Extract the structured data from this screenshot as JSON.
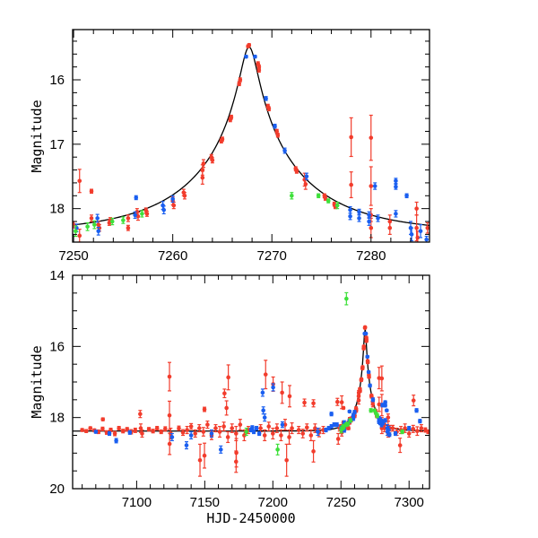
{
  "chart_data": [
    {
      "type": "scatter",
      "panel": "top",
      "title": "",
      "xlabel": "",
      "ylabel": "Magnitude",
      "xlim": [
        7249.9,
        7285.9
      ],
      "ylim": [
        18.52,
        15.22
      ],
      "y_inverted": true,
      "xticks": [
        7250,
        7260,
        7270,
        7280
      ],
      "xtick_labels": [
        "7250",
        "7260",
        "7270",
        "7280"
      ],
      "xminor_step": 2,
      "yticks": [
        16,
        17,
        18
      ],
      "ytick_labels": [
        "16",
        "17",
        "18"
      ],
      "yminor_step": 0.2,
      "grid": false,
      "legend": "none"
    },
    {
      "type": "scatter",
      "panel": "bottom",
      "title": "",
      "xlabel": "HJD-2450000",
      "ylabel": "Magnitude",
      "xlim": [
        7053,
        7315
      ],
      "ylim": [
        20,
        14
      ],
      "y_inverted": true,
      "xticks": [
        7100,
        7150,
        7200,
        7250,
        7300
      ],
      "xtick_labels": [
        "7100",
        "7150",
        "7200",
        "7250",
        "7300"
      ],
      "xminor_step": 10,
      "yticks": [
        14,
        16,
        18,
        20
      ],
      "ytick_labels": [
        "14",
        "16",
        "18",
        "20"
      ],
      "yminor_step": 0.5,
      "grid": false,
      "legend": "none"
    }
  ],
  "model": {
    "t0": 7267.7,
    "u0": 0.07,
    "tE": 11.5,
    "baseline_mag": 18.38,
    "color": "#000000"
  },
  "series": [
    {
      "color": "#f23c2c",
      "points": [
        [
          7250.0,
          18.25,
          0.05
        ],
        [
          7250.6,
          17.57,
          0.18
        ],
        [
          7250.6,
          18.42,
          0.1
        ],
        [
          7251.8,
          17.73,
          0.03
        ],
        [
          7251.8,
          18.15,
          0.05
        ],
        [
          7252.5,
          18.25,
          0.05
        ],
        [
          7252.6,
          18.3,
          0.05
        ],
        [
          7253.6,
          18.22,
          0.04
        ],
        [
          7253.7,
          18.18,
          0.04
        ],
        [
          7255.5,
          18.15,
          0.05
        ],
        [
          7255.5,
          18.3,
          0.04
        ],
        [
          7256.4,
          18.05,
          0.05
        ],
        [
          7256.5,
          18.12,
          0.06
        ],
        [
          7257.3,
          18.03,
          0.04
        ],
        [
          7257.4,
          18.08,
          0.04
        ],
        [
          7260.0,
          17.88,
          0.06
        ],
        [
          7260.1,
          17.95,
          0.05
        ],
        [
          7261.1,
          17.75,
          0.05
        ],
        [
          7261.2,
          17.8,
          0.05
        ],
        [
          7263.0,
          17.4,
          0.08
        ],
        [
          7263.0,
          17.52,
          0.1
        ],
        [
          7263.1,
          17.3,
          0.06
        ],
        [
          7263.9,
          17.2,
          0.04
        ],
        [
          7264.0,
          17.25,
          0.04
        ],
        [
          7264.9,
          16.95,
          0.03
        ],
        [
          7265.0,
          16.92,
          0.03
        ],
        [
          7265.8,
          16.62,
          0.03
        ],
        [
          7265.9,
          16.58,
          0.03
        ],
        [
          7266.7,
          16.06,
          0.03
        ],
        [
          7266.8,
          16.0,
          0.03
        ],
        [
          7267.6,
          15.48,
          0.02
        ],
        [
          7267.7,
          15.46,
          0.02
        ],
        [
          7268.6,
          15.75,
          0.03
        ],
        [
          7268.7,
          15.85,
          0.03
        ],
        [
          7268.7,
          15.8,
          0.03
        ],
        [
          7269.6,
          16.41,
          0.03
        ],
        [
          7269.7,
          16.45,
          0.03
        ],
        [
          7270.5,
          16.8,
          0.03
        ],
        [
          7270.6,
          16.86,
          0.03
        ],
        [
          7272.4,
          17.38,
          0.03
        ],
        [
          7272.5,
          17.42,
          0.03
        ],
        [
          7273.3,
          17.55,
          0.1
        ],
        [
          7273.4,
          17.62,
          0.08
        ],
        [
          7275.3,
          17.8,
          0.03
        ],
        [
          7275.4,
          17.84,
          0.03
        ],
        [
          7276.3,
          17.93,
          0.03
        ],
        [
          7276.4,
          17.97,
          0.03
        ],
        [
          7280.0,
          16.9,
          0.35
        ],
        [
          7280.0,
          17.65,
          0.3
        ],
        [
          7280.0,
          18.1,
          0.1
        ],
        [
          7280.0,
          18.3,
          0.15
        ],
        [
          7281.9,
          18.2,
          0.1
        ],
        [
          7281.9,
          18.3,
          0.1
        ],
        [
          7284.6,
          18.0,
          0.1
        ],
        [
          7284.6,
          18.3,
          0.2
        ],
        [
          7284.7,
          18.45,
          0.1
        ],
        [
          7285.7,
          18.3,
          0.08
        ],
        [
          7060,
          18.35,
          0.04
        ],
        [
          7063,
          18.38,
          0.04
        ],
        [
          7066,
          18.3,
          0.04
        ],
        [
          7069,
          18.36,
          0.04
        ],
        [
          7072,
          18.4,
          0.05
        ],
        [
          7075.2,
          18.05,
          0.04
        ],
        [
          7075,
          18.32,
          0.05
        ],
        [
          7078,
          18.42,
          0.05
        ],
        [
          7081,
          18.35,
          0.05
        ],
        [
          7084,
          18.45,
          0.06
        ],
        [
          7087,
          18.3,
          0.05
        ],
        [
          7090,
          18.38,
          0.05
        ],
        [
          7093,
          18.33,
          0.05
        ],
        [
          7096,
          18.4,
          0.06
        ],
        [
          7099,
          18.36,
          0.06
        ],
        [
          7102.6,
          17.9,
          0.1
        ],
        [
          7103,
          18.3,
          0.12
        ],
        [
          7104,
          18.45,
          0.1
        ],
        [
          7109,
          18.33,
          0.05
        ],
        [
          7112,
          18.38,
          0.05
        ],
        [
          7115,
          18.3,
          0.05
        ],
        [
          7118,
          18.4,
          0.05
        ],
        [
          7121,
          18.32,
          0.06
        ],
        [
          7124.1,
          16.85,
          0.4
        ],
        [
          7124.1,
          17.94,
          0.4
        ],
        [
          7124.2,
          18.74,
          0.3
        ],
        [
          7125,
          18.45,
          0.15
        ],
        [
          7131,
          18.3,
          0.06
        ],
        [
          7134,
          18.42,
          0.08
        ],
        [
          7137,
          18.35,
          0.1
        ],
        [
          7140,
          18.25,
          0.08
        ],
        [
          7143,
          18.45,
          0.1
        ],
        [
          7146,
          18.3,
          0.1
        ],
        [
          7146.5,
          19.2,
          0.45
        ],
        [
          7149,
          18.4,
          0.12
        ],
        [
          7149.8,
          17.77,
          0.06
        ],
        [
          7149.8,
          19.07,
          0.35
        ],
        [
          7152,
          18.2,
          0.1
        ],
        [
          7155,
          18.5,
          0.12
        ],
        [
          7158,
          18.3,
          0.1
        ],
        [
          7161,
          18.4,
          0.15
        ],
        [
          7164,
          18.25,
          0.12
        ],
        [
          7164.5,
          17.32,
          0.12
        ],
        [
          7166,
          17.73,
          0.2
        ],
        [
          7167,
          18.55,
          0.15
        ],
        [
          7167.3,
          16.87,
          0.35
        ],
        [
          7170,
          18.3,
          0.12
        ],
        [
          7173,
          18.45,
          0.2
        ],
        [
          7173.2,
          18.99,
          0.4
        ],
        [
          7173,
          19.24,
          0.3
        ],
        [
          7176,
          18.2,
          0.15
        ],
        [
          7179,
          18.5,
          0.15
        ],
        [
          7182,
          18.35,
          0.1
        ],
        [
          7191,
          18.3,
          0.1
        ],
        [
          7194,
          18.5,
          0.15
        ],
        [
          7194.7,
          16.79,
          0.4
        ],
        [
          7197,
          18.25,
          0.12
        ],
        [
          7200,
          18.45,
          0.15
        ],
        [
          7200.2,
          17.06,
          0.2
        ],
        [
          7203,
          18.3,
          0.12
        ],
        [
          7206,
          18.5,
          0.15
        ],
        [
          7206.8,
          17.3,
          0.3
        ],
        [
          7209,
          18.2,
          0.15
        ],
        [
          7210.1,
          19.2,
          0.45
        ],
        [
          7212,
          18.55,
          0.2
        ],
        [
          7212.3,
          17.4,
          0.3
        ],
        [
          7214,
          18.3,
          0.15
        ],
        [
          7219,
          18.35,
          0.1
        ],
        [
          7222,
          18.45,
          0.12
        ],
        [
          7223.2,
          17.58,
          0.1
        ],
        [
          7225,
          18.28,
          0.1
        ],
        [
          7228,
          18.5,
          0.15
        ],
        [
          7229.8,
          17.6,
          0.1
        ],
        [
          7229.8,
          18.95,
          0.3
        ],
        [
          7231,
          18.3,
          0.12
        ],
        [
          7234,
          18.42,
          0.12
        ],
        [
          7237,
          18.35,
          0.1
        ],
        [
          7247.4,
          17.56,
          0.1
        ],
        [
          7248,
          18.6,
          0.15
        ],
        [
          7249,
          18.3,
          0.08
        ],
        [
          7278,
          16.89,
          0.3
        ],
        [
          7278,
          17.63,
          0.2
        ],
        [
          7288,
          18.3,
          0.08
        ],
        [
          7291,
          18.4,
          0.1
        ],
        [
          7293.4,
          18.78,
          0.2
        ],
        [
          7294,
          18.35,
          0.1
        ],
        [
          7297,
          18.3,
          0.12
        ],
        [
          7300,
          18.45,
          0.1
        ],
        [
          7303,
          18.32,
          0.1
        ],
        [
          7303.3,
          17.52,
          0.15
        ],
        [
          7306,
          18.38,
          0.12
        ],
        [
          7309,
          18.3,
          0.1
        ],
        [
          7312,
          18.35,
          0.06
        ],
        [
          7314,
          18.4,
          0.05
        ]
      ]
    },
    {
      "color": "#1a5ff0",
      "points": [
        [
          7250.3,
          18.3,
          0.06
        ],
        [
          7252.4,
          18.15,
          0.06
        ],
        [
          7252.5,
          18.35,
          0.06
        ],
        [
          7256.3,
          17.83,
          0.03
        ],
        [
          7256.2,
          18.1,
          0.05
        ],
        [
          7259.0,
          17.95,
          0.06
        ],
        [
          7259.1,
          18.02,
          0.06
        ],
        [
          7260.0,
          17.85,
          0.05
        ],
        [
          7267.4,
          15.64,
          0.02
        ],
        [
          7268.3,
          15.64,
          0.02
        ],
        [
          7269.4,
          16.29,
          0.03
        ],
        [
          7270.3,
          16.72,
          0.03
        ],
        [
          7271.3,
          17.1,
          0.04
        ],
        [
          7273.5,
          17.5,
          0.05
        ],
        [
          7277.9,
          18.02,
          0.05
        ],
        [
          7277.9,
          18.12,
          0.05
        ],
        [
          7278.8,
          18.05,
          0.04
        ],
        [
          7278.8,
          18.15,
          0.05
        ],
        [
          7279.8,
          18.1,
          0.05
        ],
        [
          7279.8,
          18.2,
          0.06
        ],
        [
          7280.7,
          18.15,
          0.05
        ],
        [
          7282.5,
          17.57,
          0.04
        ],
        [
          7282.5,
          17.66,
          0.04
        ],
        [
          7282.5,
          18.08,
          0.05
        ],
        [
          7283.6,
          17.8,
          0.03
        ],
        [
          7284.0,
          18.3,
          0.1
        ],
        [
          7284.1,
          18.4,
          0.1
        ],
        [
          7285.0,
          18.35,
          0.1
        ],
        [
          7285.6,
          18.48,
          0.05
        ],
        [
          7070,
          18.4,
          0.04
        ],
        [
          7080,
          18.45,
          0.05
        ],
        [
          7085,
          18.65,
          0.06
        ],
        [
          7095,
          18.42,
          0.05
        ],
        [
          7126,
          18.55,
          0.1
        ],
        [
          7136.6,
          18.78,
          0.1
        ],
        [
          7140,
          18.5,
          0.1
        ],
        [
          7155,
          18.45,
          0.1
        ],
        [
          7161.8,
          18.9,
          0.1
        ],
        [
          7184,
          18.35,
          0.05
        ],
        [
          7184.9,
          18.28,
          0.05
        ],
        [
          7186,
          18.4,
          0.05
        ],
        [
          7188,
          18.3,
          0.05
        ],
        [
          7190,
          18.45,
          0.05
        ],
        [
          7192.5,
          17.3,
          0.1
        ],
        [
          7193,
          17.8,
          0.1
        ],
        [
          7194,
          18.0,
          0.1
        ],
        [
          7200.2,
          17.15,
          0.1
        ],
        [
          7207,
          18.2,
          0.08
        ],
        [
          7233,
          18.4,
          0.1
        ],
        [
          7239,
          18.35,
          0.05
        ],
        [
          7241,
          18.3,
          0.05
        ],
        [
          7243,
          17.9,
          0.05
        ],
        [
          7243,
          18.25,
          0.05
        ],
        [
          7245,
          18.2,
          0.05
        ],
        [
          7247,
          18.2,
          0.05
        ],
        [
          7280.4,
          17.65,
          0.05
        ],
        [
          7290,
          18.45,
          0.05
        ],
        [
          7300,
          18.3,
          0.05
        ],
        [
          7305.5,
          17.8,
          0.05
        ],
        [
          7308,
          18.1,
          0.05
        ]
      ]
    },
    {
      "color": "#3ee03a",
      "points": [
        [
          7250.2,
          18.35,
          0.08
        ],
        [
          7251.4,
          18.28,
          0.06
        ],
        [
          7252.1,
          18.25,
          0.06
        ],
        [
          7253.9,
          18.2,
          0.05
        ],
        [
          7255.0,
          18.18,
          0.05
        ],
        [
          7256.9,
          18.08,
          0.05
        ],
        [
          7274.7,
          17.8,
          0.03
        ],
        [
          7275.7,
          17.88,
          0.03
        ],
        [
          7276.6,
          17.95,
          0.05
        ],
        [
          7254,
          14.66,
          0.17
        ],
        [
          7203.5,
          18.9,
          0.15
        ],
        [
          7180.5,
          18.4,
          0.1
        ],
        [
          7272,
          17.8,
          0.05
        ],
        [
          7295,
          18.4,
          0.05
        ]
      ]
    }
  ]
}
